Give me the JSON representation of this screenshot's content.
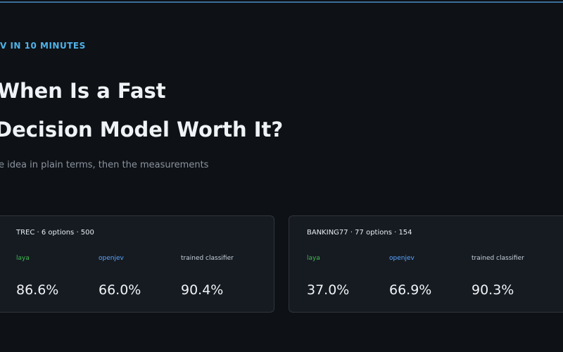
{
  "header": {
    "eyebrow": "V IN 10 MINUTES",
    "title_lines": [
      "When Is a Fast",
      "Decision Model Worth It?"
    ],
    "subtitle": "e idea in plain terms, then the measurements"
  },
  "cards": [
    {
      "heading": "TREC · 6 options · 500",
      "metrics": [
        {
          "label": "laya",
          "value": "86.6%"
        },
        {
          "label": "openjev",
          "value": "66.0%"
        },
        {
          "label": "trained classifier",
          "value": "90.4%"
        }
      ]
    },
    {
      "heading": "BANKING77 · 77 options · 154",
      "metrics": [
        {
          "label": "laya",
          "value": "37.0%"
        },
        {
          "label": "openjev",
          "value": "66.9%"
        },
        {
          "label": "trained classifier",
          "value": "90.3%"
        }
      ]
    }
  ]
}
